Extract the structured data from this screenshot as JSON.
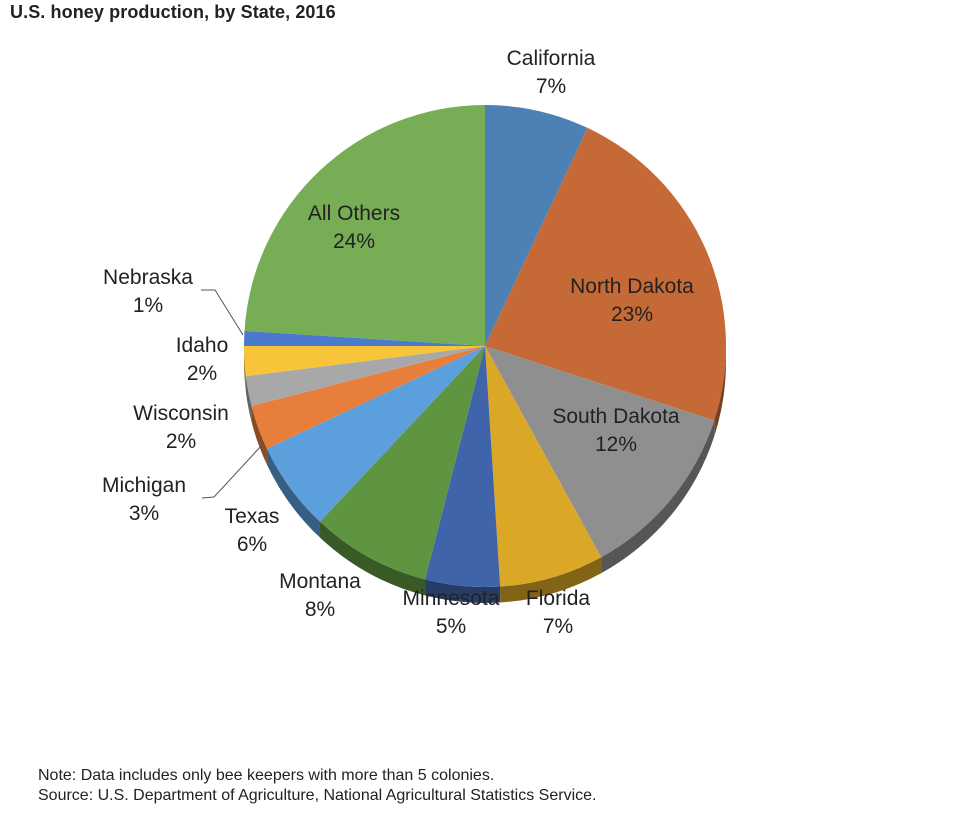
{
  "chart_data": {
    "type": "pie",
    "title": "U.S. honey production, by State, 2016",
    "slices": [
      {
        "label": "California",
        "value": 7,
        "value_label": "7%",
        "color": "#4d80b4"
      },
      {
        "label": "North Dakota",
        "value": 23,
        "value_label": "23%",
        "color": "#c56a36"
      },
      {
        "label": "South Dakota",
        "value": 12,
        "value_label": "12%",
        "color": "#8f8f8f"
      },
      {
        "label": "Florida",
        "value": 7,
        "value_label": "7%",
        "color": "#dba727"
      },
      {
        "label": "Minnesota",
        "value": 5,
        "value_label": "5%",
        "color": "#3f64aa"
      },
      {
        "label": "Montana",
        "value": 8,
        "value_label": "8%",
        "color": "#5f9440"
      },
      {
        "label": "Texas",
        "value": 6,
        "value_label": "6%",
        "color": "#5b9fdc"
      },
      {
        "label": "Michigan",
        "value": 3,
        "value_label": "3%",
        "color": "#e77e3c"
      },
      {
        "label": "Wisconsin",
        "value": 2,
        "value_label": "2%",
        "color": "#a8a8a8"
      },
      {
        "label": "Idaho",
        "value": 2,
        "value_label": "2%",
        "color": "#f7c43a"
      },
      {
        "label": "Nebraska",
        "value": 1,
        "value_label": "1%",
        "color": "#4b79cc"
      },
      {
        "label": "All Others",
        "value": 24,
        "value_label": "24%",
        "color": "#77ad55"
      }
    ]
  },
  "footnotes": {
    "note": "Note: Data includes only bee keepers with more than 5 colonies.",
    "source": "Source: U.S. Department  of Agriculture, National Agricultural Statistics Service."
  }
}
